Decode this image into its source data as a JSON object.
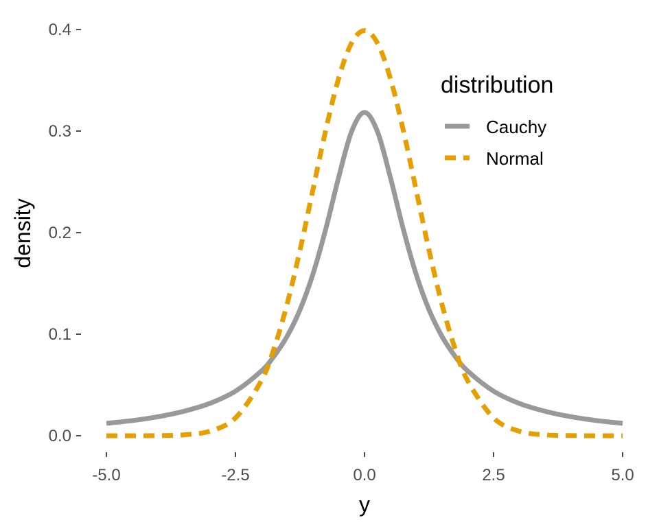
{
  "chart_data": {
    "type": "line",
    "title": "",
    "xlabel": "y",
    "ylabel": "density",
    "xlim": [
      -5,
      5
    ],
    "ylim": [
      0,
      0.4
    ],
    "x_ticks": [
      -5,
      -2.5,
      0,
      2.5,
      5
    ],
    "x_tick_labels": [
      "-5.0",
      "-2.5",
      "0.0",
      "2.5",
      "5.0"
    ],
    "y_ticks": [
      0,
      0.1,
      0.2,
      0.3,
      0.4
    ],
    "y_tick_labels": [
      "0.0",
      "0.1",
      "0.2",
      "0.3",
      "0.4"
    ],
    "grid": false,
    "legend": {
      "title": "distribution",
      "position": "top-right"
    },
    "x": [
      -5,
      -4.5,
      -4,
      -3.5,
      -3,
      -2.5,
      -2,
      -1.75,
      -1.5,
      -1.25,
      -1,
      -0.75,
      -0.5,
      -0.25,
      0,
      0.25,
      0.5,
      0.75,
      1,
      1.25,
      1.5,
      1.75,
      2,
      2.5,
      3,
      3.5,
      4,
      4.5,
      5
    ],
    "series": [
      {
        "name": "Cauchy",
        "color": "#999999",
        "dash": "solid",
        "values": [
          0.0122,
          0.0149,
          0.0187,
          0.0241,
          0.0318,
          0.0439,
          0.0637,
          0.0785,
          0.0979,
          0.124,
          0.159,
          0.2037,
          0.2546,
          0.2996,
          0.3183,
          0.2996,
          0.2546,
          0.2037,
          0.159,
          0.124,
          0.0979,
          0.0785,
          0.0637,
          0.0439,
          0.0318,
          0.0241,
          0.0187,
          0.0149,
          0.0122
        ]
      },
      {
        "name": "Normal",
        "color": "#E69F00",
        "dash": "dashed",
        "values": [
          1.5e-06,
          1.6e-05,
          0.000134,
          0.000873,
          0.00443,
          0.0175,
          0.054,
          0.0863,
          0.1295,
          0.1826,
          0.242,
          0.3011,
          0.3521,
          0.3867,
          0.3989,
          0.3867,
          0.3521,
          0.3011,
          0.242,
          0.1826,
          0.1295,
          0.0863,
          0.054,
          0.0175,
          0.00443,
          0.000873,
          0.000134,
          1.6e-05,
          1.5e-06
        ]
      }
    ]
  }
}
